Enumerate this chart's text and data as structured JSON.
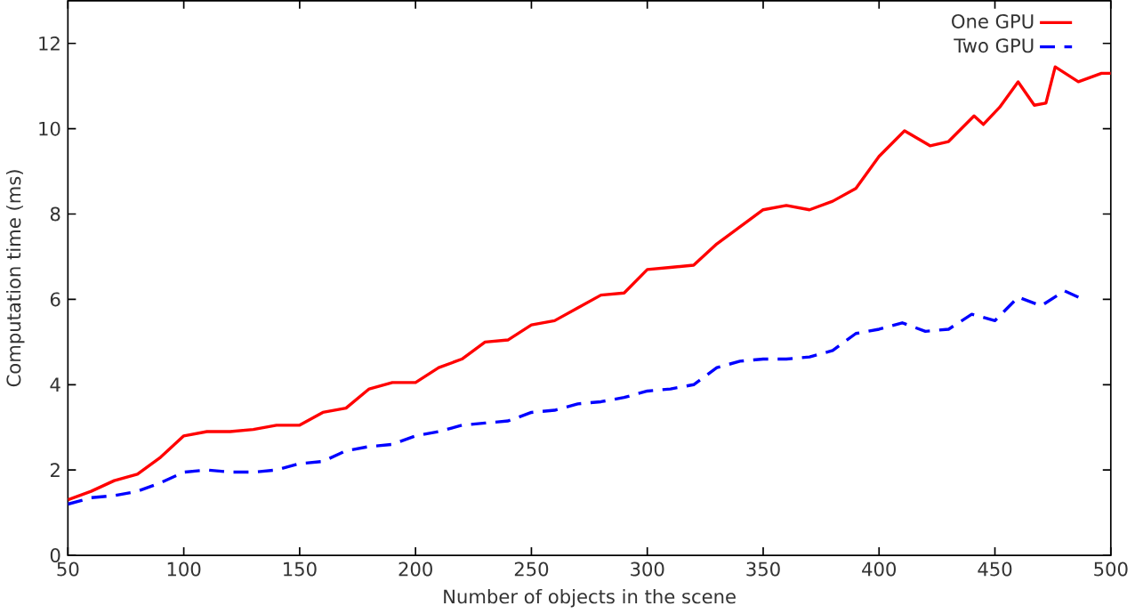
{
  "chart_data": {
    "type": "line",
    "xlabel": "Number of objects in the scene",
    "ylabel": "Computation time (ms)",
    "xlim": [
      50,
      500
    ],
    "ylim": [
      0,
      13
    ],
    "xticks": [
      50,
      100,
      150,
      200,
      250,
      300,
      350,
      400,
      450,
      500
    ],
    "yticks": [
      0,
      2,
      4,
      6,
      8,
      10,
      12
    ],
    "legend": "top right",
    "grid": false,
    "series": [
      {
        "name": "One GPU",
        "color": "#ff0000",
        "line_style": "solid",
        "x": [
          50,
          60,
          70,
          80,
          90,
          100,
          110,
          120,
          130,
          140,
          150,
          160,
          170,
          180,
          190,
          200,
          210,
          220,
          230,
          240,
          250,
          260,
          270,
          280,
          290,
          300,
          310,
          320,
          330,
          340,
          350,
          360,
          370,
          380,
          390,
          400,
          411,
          422,
          430,
          441,
          445,
          452,
          460,
          467,
          472,
          476,
          486,
          496,
          500
        ],
        "values": [
          1.3,
          1.5,
          1.75,
          1.9,
          2.3,
          2.8,
          2.9,
          2.9,
          2.95,
          3.05,
          3.05,
          3.35,
          3.45,
          3.9,
          4.05,
          4.05,
          4.4,
          4.6,
          5.0,
          5.05,
          5.4,
          5.5,
          5.8,
          6.1,
          6.15,
          6.7,
          6.75,
          6.8,
          7.3,
          7.7,
          8.1,
          8.2,
          8.1,
          8.3,
          8.6,
          9.35,
          9.95,
          9.6,
          9.7,
          10.3,
          10.1,
          10.5,
          11.1,
          10.55,
          10.6,
          11.45,
          11.1,
          11.3,
          11.3
        ]
      },
      {
        "name": "Two GPU",
        "color": "#0000ff",
        "line_style": "dashed",
        "x": [
          50,
          60,
          70,
          80,
          90,
          100,
          110,
          120,
          130,
          140,
          150,
          160,
          170,
          180,
          190,
          200,
          210,
          220,
          230,
          240,
          250,
          260,
          270,
          280,
          290,
          300,
          310,
          320,
          330,
          340,
          350,
          360,
          370,
          380,
          390,
          400,
          410,
          420,
          430,
          440,
          450,
          460,
          470,
          480,
          488
        ],
        "values": [
          1.2,
          1.35,
          1.4,
          1.5,
          1.7,
          1.95,
          2.0,
          1.95,
          1.95,
          2.0,
          2.15,
          2.2,
          2.45,
          2.55,
          2.6,
          2.8,
          2.9,
          3.05,
          3.1,
          3.15,
          3.35,
          3.4,
          3.55,
          3.6,
          3.7,
          3.85,
          3.9,
          4.0,
          4.4,
          4.55,
          4.6,
          4.6,
          4.65,
          4.8,
          5.2,
          5.3,
          5.45,
          5.25,
          5.3,
          5.65,
          5.5,
          6.05,
          5.85,
          6.2,
          6.0
        ]
      }
    ]
  }
}
